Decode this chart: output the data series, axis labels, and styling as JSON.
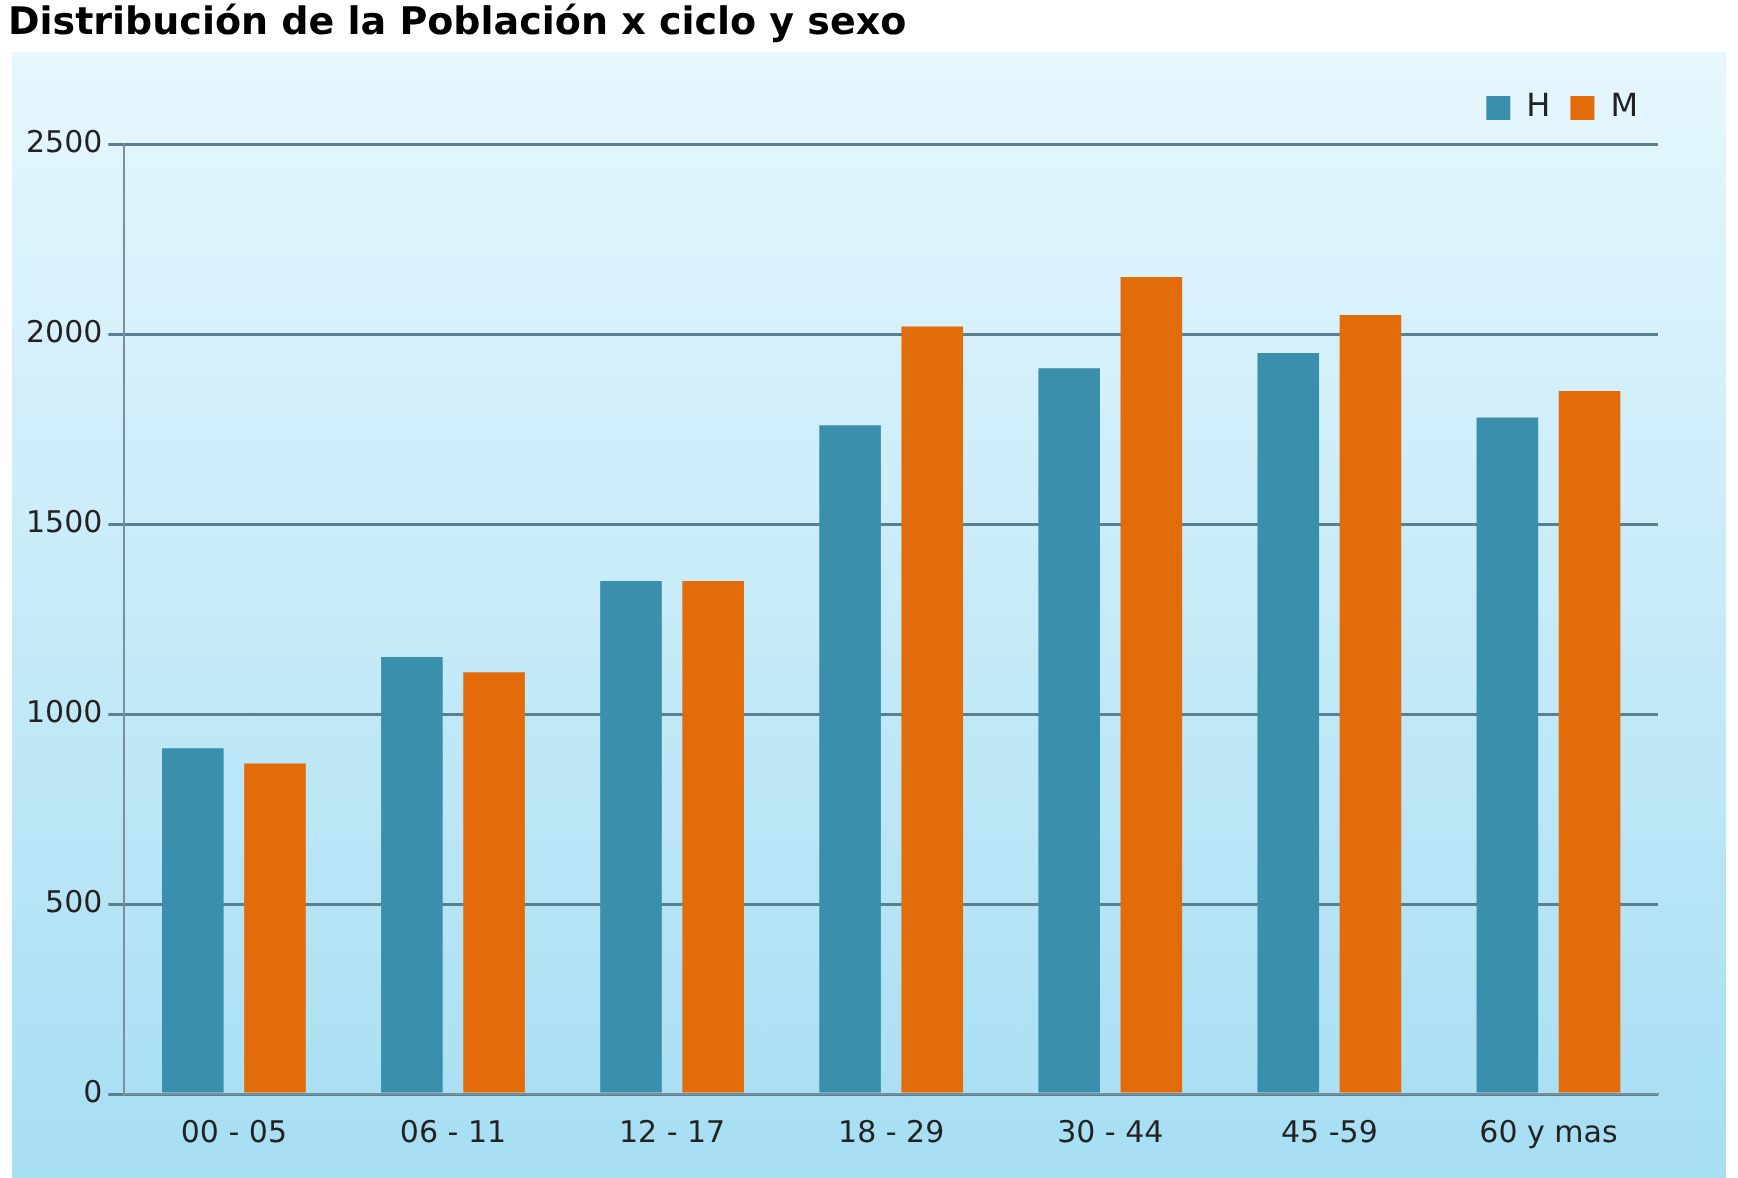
{
  "chart_data": {
    "type": "bar",
    "title": "Distribución de la Población x ciclo y sexo",
    "categories": [
      "00 - 05",
      "06 - 11",
      "12 - 17",
      "18 - 29",
      "30 - 44",
      "45 -59",
      "60 y mas"
    ],
    "series": [
      {
        "name": "H",
        "color": "#3a8fad",
        "values": [
          910,
          1150,
          1350,
          1760,
          1910,
          1950,
          1780
        ]
      },
      {
        "name": "M",
        "color": "#e36c0a",
        "values": [
          870,
          1110,
          1350,
          2020,
          2150,
          2050,
          1850
        ]
      }
    ],
    "ylim": [
      0,
      2500
    ],
    "yticks": [
      0,
      500,
      1000,
      1500,
      2000,
      2500
    ],
    "grid": "y",
    "legend": "top right"
  }
}
